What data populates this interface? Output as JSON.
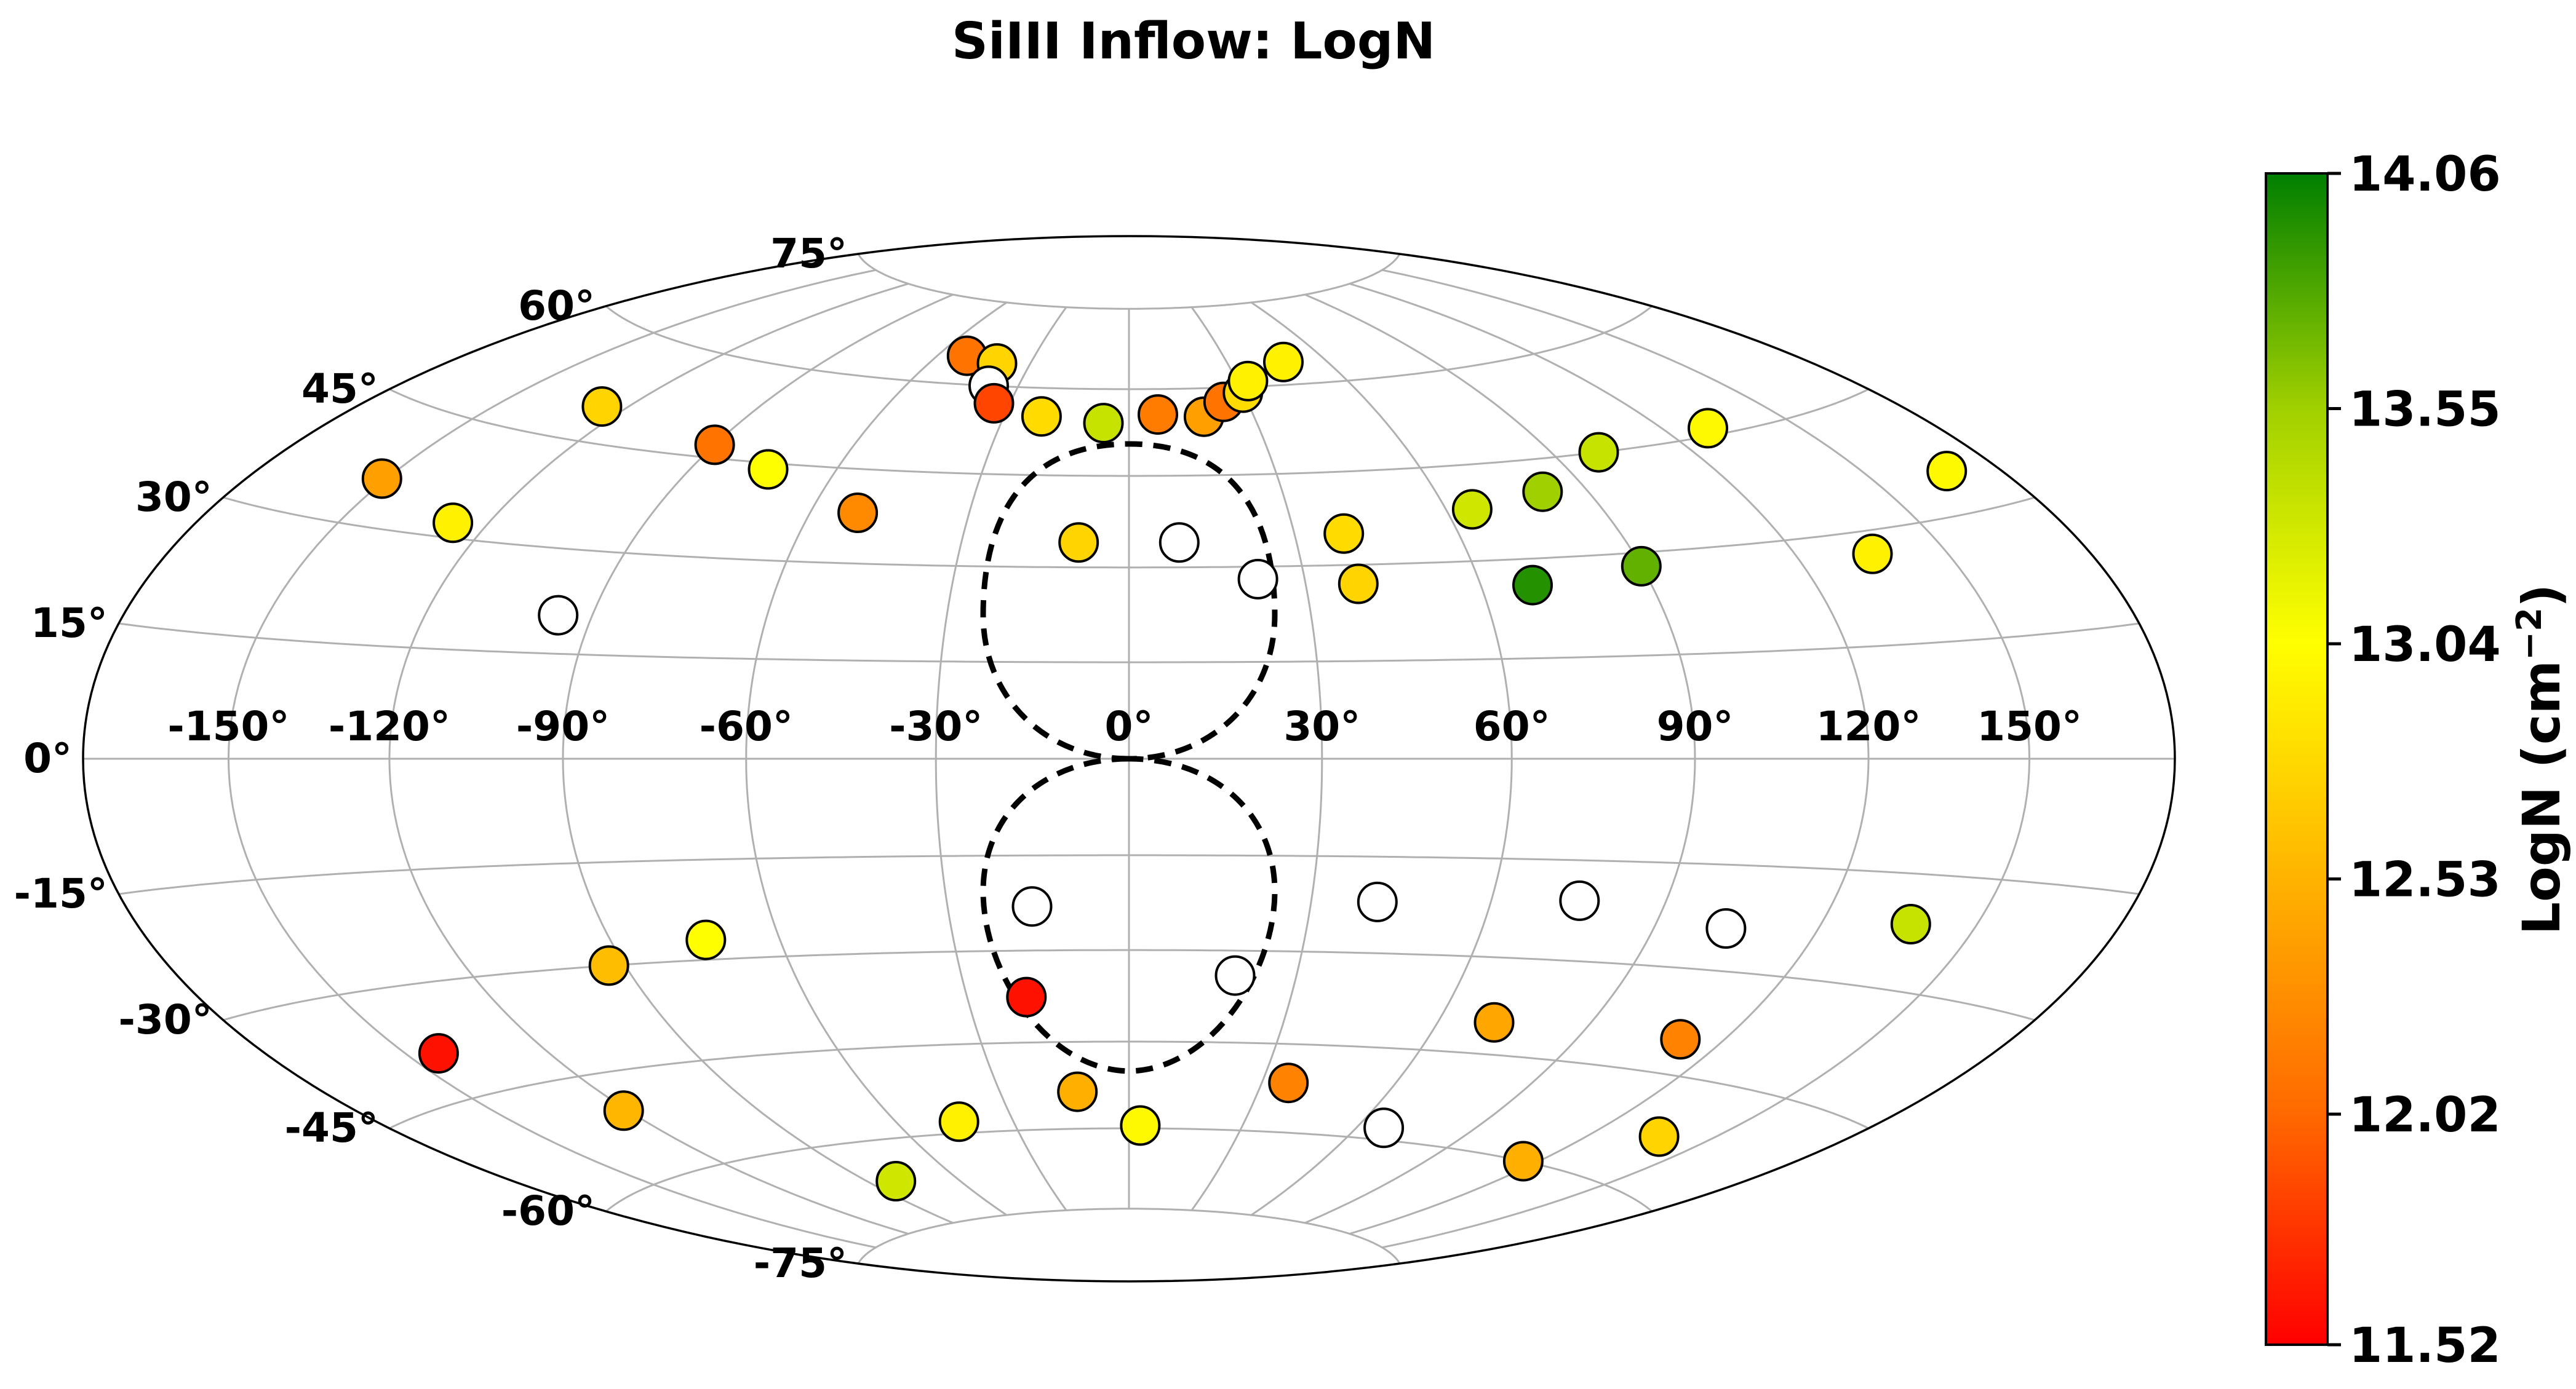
{
  "chart_data": {
    "type": "scatter",
    "projection": "aitoff-like (hammer)",
    "title": "SiIII Inflow: LogN",
    "colorbar": {
      "label_main": "LogN",
      "label_unit": "(cm",
      "label_exp": "−2",
      "label_close": ")",
      "ticks": [
        "14.06",
        "13.55",
        "13.04",
        "12.53",
        "12.02",
        "11.52"
      ],
      "min": 11.52,
      "max": 14.06,
      "colors": [
        "#ff0000",
        "#ff6a00",
        "#ffb400",
        "#ffff00",
        "#a0d000",
        "#007f00"
      ]
    },
    "lon_ticks": [
      "-150°",
      "-120°",
      "-90°",
      "-60°",
      "-30°",
      "0°",
      "30°",
      "60°",
      "90°",
      "120°",
      "150°"
    ],
    "lat_ticks": [
      "75°",
      "60°",
      "45°",
      "30°",
      "15°",
      "0°",
      "-15°",
      "-30°",
      "-45°",
      "-60°",
      "-75°"
    ],
    "points": [
      {
        "l": -51,
        "b": 65,
        "logN": 12.1
      },
      {
        "l": -40,
        "b": 64,
        "logN": 12.75
      },
      {
        "l": -38,
        "b": 60,
        "logN": null
      },
      {
        "l": -34,
        "b": 57,
        "logN": 11.85
      },
      {
        "l": -21,
        "b": 55,
        "logN": 12.8
      },
      {
        "l": -6,
        "b": 54,
        "logN": 13.35
      },
      {
        "l": 7,
        "b": 55.5,
        "logN": 12.15
      },
      {
        "l": 18,
        "b": 55,
        "logN": 12.4
      },
      {
        "l": 24,
        "b": 57.5,
        "logN": 12.1
      },
      {
        "l": 30,
        "b": 59,
        "logN": 12.8
      },
      {
        "l": 33,
        "b": 61,
        "logN": 12.95
      },
      {
        "l": 47,
        "b": 64,
        "logN": 12.95
      },
      {
        "l": -126,
        "b": 50,
        "logN": 12.75
      },
      {
        "l": -90,
        "b": 47,
        "logN": 12.1
      },
      {
        "l": -74,
        "b": 44,
        "logN": 13.05
      },
      {
        "l": -51,
        "b": 38,
        "logN": 12.25
      },
      {
        "l": -9,
        "b": 34,
        "logN": 12.75
      },
      {
        "l": 9,
        "b": 34,
        "logN": null
      },
      {
        "l": 39,
        "b": 35,
        "logN": 12.8
      },
      {
        "l": 65,
        "b": 38,
        "logN": 13.3
      },
      {
        "l": 81,
        "b": 40,
        "logN": 13.55
      },
      {
        "l": 100,
        "b": 45,
        "logN": 13.35
      },
      {
        "l": 130,
        "b": 46,
        "logN": 13.0
      },
      {
        "l": -151,
        "b": 36,
        "logN": 12.4
      },
      {
        "l": -127,
        "b": 32,
        "logN": 12.95
      },
      {
        "l": 22,
        "b": 28,
        "logN": null
      },
      {
        "l": 39,
        "b": 27,
        "logN": 12.75
      },
      {
        "l": 69,
        "b": 26,
        "logN": 13.95
      },
      {
        "l": 90,
        "b": 28,
        "logN": 13.75
      },
      {
        "l": 135,
        "b": 27,
        "logN": 12.95
      },
      {
        "l": 168,
        "b": 35,
        "logN": 13.0
      },
      {
        "l": -96,
        "b": 20.5,
        "logN": null
      },
      {
        "l": -16,
        "b": -23,
        "logN": null
      },
      {
        "l": 41,
        "b": -22,
        "logN": null
      },
      {
        "l": 75,
        "b": -21,
        "logN": null
      },
      {
        "l": 103,
        "b": -24,
        "logN": null
      },
      {
        "l": 137,
        "b": -21.5,
        "logN": 13.35
      },
      {
        "l": -73,
        "b": -27,
        "logN": 13.05
      },
      {
        "l": -93,
        "b": -30,
        "logN": 12.6
      },
      {
        "l": 19,
        "b": -34,
        "logN": null
      },
      {
        "l": -19,
        "b": -37.5,
        "logN": 11.6
      },
      {
        "l": -143,
        "b": -39,
        "logN": 11.6
      },
      {
        "l": 71,
        "b": -40,
        "logN": 12.45
      },
      {
        "l": 111,
        "b": -40,
        "logN": 12.2
      },
      {
        "l": -121,
        "b": -50.5,
        "logN": 12.55
      },
      {
        "l": -12,
        "b": -53.5,
        "logN": 12.5
      },
      {
        "l": 36,
        "b": -51.5,
        "logN": 12.2
      },
      {
        "l": 137,
        "b": -53,
        "logN": 12.75
      },
      {
        "l": -44,
        "b": -58,
        "logN": 12.95
      },
      {
        "l": 3,
        "b": -59.5,
        "logN": 13.0
      },
      {
        "l": 67,
        "b": -58,
        "logN": null
      },
      {
        "l": 116,
        "b": -60,
        "logN": 12.5
      },
      {
        "l": -81,
        "b": -67,
        "logN": 13.3
      }
    ]
  }
}
